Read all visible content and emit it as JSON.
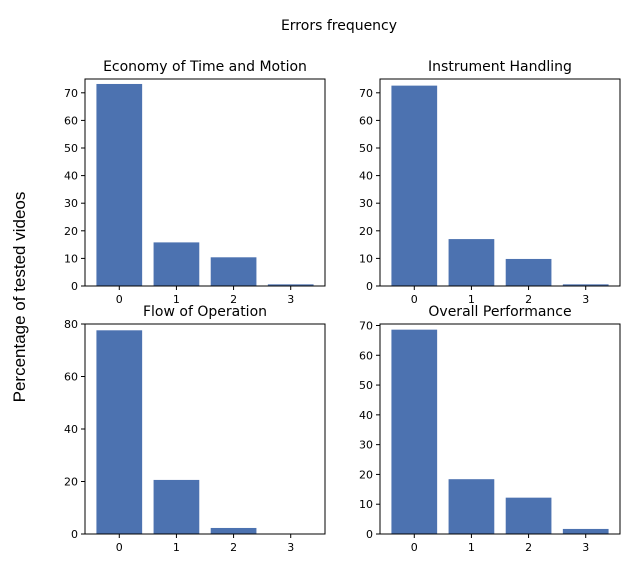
{
  "figure": {
    "title": "Errors frequency",
    "ylabel": "Percentage of tested videos",
    "bar_color": "#4c72b0"
  },
  "chart_data": [
    {
      "type": "bar",
      "title": "Economy of Time and Motion",
      "categories": [
        "0",
        "1",
        "2",
        "3"
      ],
      "values": [
        73.2,
        15.8,
        10.4,
        0.6
      ],
      "ylim": [
        0,
        75
      ],
      "yticks": [
        0,
        10,
        20,
        30,
        40,
        50,
        60,
        70
      ],
      "xlabel": "",
      "ylabel": "",
      "grid": false
    },
    {
      "type": "bar",
      "title": "Instrument Handling",
      "categories": [
        "0",
        "1",
        "2",
        "3"
      ],
      "values": [
        72.6,
        17.0,
        9.8,
        0.6
      ],
      "ylim": [
        0,
        75
      ],
      "yticks": [
        0,
        10,
        20,
        30,
        40,
        50,
        60,
        70
      ],
      "xlabel": "",
      "ylabel": "",
      "grid": false
    },
    {
      "type": "bar",
      "title": "Flow of Operation",
      "categories": [
        "0",
        "1",
        "2",
        "3"
      ],
      "values": [
        77.6,
        20.6,
        2.3,
        0
      ],
      "ylim": [
        0,
        80
      ],
      "yticks": [
        0,
        20,
        40,
        60,
        80
      ],
      "xlabel": "",
      "ylabel": "",
      "grid": false
    },
    {
      "type": "bar",
      "title": "Overall Performance",
      "categories": [
        "0",
        "1",
        "2",
        "3"
      ],
      "values": [
        68.6,
        18.4,
        12.2,
        1.7
      ],
      "ylim": [
        0,
        70.5
      ],
      "yticks": [
        0,
        10,
        20,
        30,
        40,
        50,
        60,
        70
      ],
      "xlabel": "",
      "ylabel": "",
      "grid": false
    }
  ]
}
